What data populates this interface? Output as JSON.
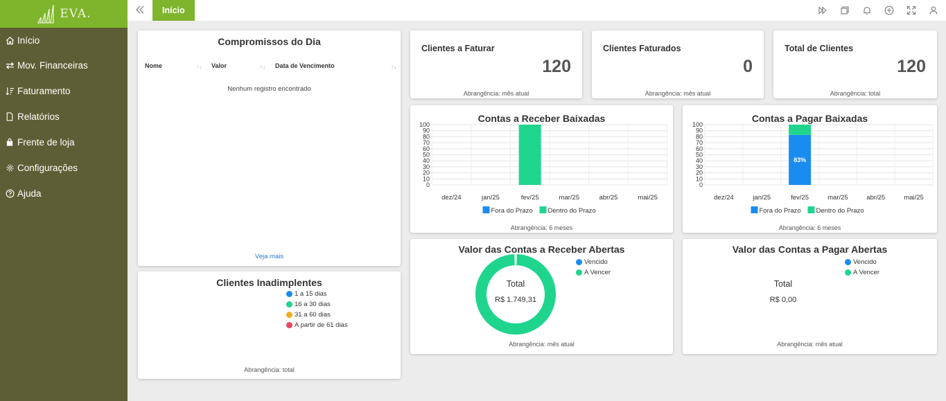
{
  "app": {
    "logo_text": "EVA."
  },
  "sidebar": {
    "items": [
      {
        "label": "Início",
        "icon": "home-icon"
      },
      {
        "label": "Mov. Financeiras",
        "icon": "exchange-icon"
      },
      {
        "label": "Faturamento",
        "icon": "sort-list-icon"
      },
      {
        "label": "Relatórios",
        "icon": "document-icon"
      },
      {
        "label": "Frente de loja",
        "icon": "bag-icon"
      },
      {
        "label": "Configurações",
        "icon": "gear-icon"
      },
      {
        "label": "Ajuda",
        "icon": "help-icon"
      }
    ]
  },
  "topbar": {
    "tab_label": "Início",
    "icons": [
      "forward-icon",
      "windows-icon",
      "bell-icon",
      "add-circle-icon",
      "fullscreen-icon",
      "user-icon"
    ]
  },
  "compromissos": {
    "title": "Compromissos do Dia",
    "columns": [
      "Nome",
      "Valor",
      "Data de Vencimento"
    ],
    "empty_message": "Nenhum registro encontrado",
    "see_more": "Veja mais"
  },
  "inadimplentes": {
    "title": "Clientes Inadimplentes",
    "legend": [
      {
        "label": "1 a 15 dias",
        "color": "#1a8cf0"
      },
      {
        "label": "16 a 30 dias",
        "color": "#1fd58e"
      },
      {
        "label": "31 a 60 dias",
        "color": "#f2ac1c"
      },
      {
        "label": "A partir de 61 dias",
        "color": "#ee4563"
      }
    ],
    "footer": "Abrangência: total"
  },
  "kpis": [
    {
      "label": "Clientes a Faturar",
      "value": "120",
      "footer": "Abrangência: mês atual"
    },
    {
      "label": "Clientes Faturados",
      "value": "0",
      "footer": "Abrangência: mês atual"
    },
    {
      "label": "Total de Clientes",
      "value": "120",
      "footer": "Abrangência: total"
    }
  ],
  "receber_baixadas": {
    "footer": "Abrangência: 6 meses"
  },
  "pagar_baixadas": {
    "footer": "Abrangência: 6 meses"
  },
  "receber_abertas": {
    "center_label": "Total",
    "center_value": "R$ 1.749,31",
    "legend": [
      {
        "label": "Vencido",
        "color": "#1a8cf0"
      },
      {
        "label": "A Vencer",
        "color": "#1fd58e"
      }
    ],
    "footer": "Abrangência: mês atual"
  },
  "pagar_abertas": {
    "center_label": "Total",
    "center_value": "R$ 0,00",
    "legend": [
      {
        "label": "Vencido",
        "color": "#1a8cf0"
      },
      {
        "label": "A Vencer",
        "color": "#1fd58e"
      }
    ],
    "footer": "Abrangência: mês atual"
  },
  "chart_data": [
    {
      "type": "bar",
      "stacked": true,
      "title": "Contas a Receber Baixadas",
      "categories": [
        "dez/24",
        "jan/25",
        "fev/25",
        "mar/25",
        "abr/25",
        "mai/25"
      ],
      "series": [
        {
          "name": "Fora do Prazo",
          "color": "#1a8cf0",
          "values": [
            0,
            0,
            0,
            0,
            0,
            0
          ]
        },
        {
          "name": "Dentro do Prazo",
          "color": "#1fd58e",
          "values": [
            0,
            0,
            100,
            0,
            0,
            0
          ]
        }
      ],
      "yticks": [
        0,
        10,
        20,
        30,
        40,
        50,
        60,
        70,
        80,
        90,
        100
      ],
      "ylim": [
        0,
        100
      ],
      "grid": true,
      "legend_position": "bottom"
    },
    {
      "type": "bar",
      "stacked": true,
      "title": "Contas a Pagar Baixadas",
      "categories": [
        "dez/24",
        "jan/25",
        "fev/25",
        "mar/25",
        "abr/25",
        "mai/25"
      ],
      "series": [
        {
          "name": "Fora do Prazo",
          "color": "#1a8cf0",
          "values": [
            0,
            0,
            83,
            0,
            0,
            0
          ]
        },
        {
          "name": "Dentro do Prazo",
          "color": "#1fd58e",
          "values": [
            0,
            0,
            17,
            0,
            0,
            0
          ]
        }
      ],
      "data_labels": [
        {
          "category": "fev/25",
          "series": "Fora do Prazo",
          "text": "83%"
        }
      ],
      "yticks": [
        0,
        10,
        20,
        30,
        40,
        50,
        60,
        70,
        80,
        90,
        100
      ],
      "ylim": [
        0,
        100
      ],
      "grid": true,
      "legend_position": "bottom"
    },
    {
      "type": "pie",
      "donut": true,
      "title": "Valor das Contas a Receber Abertas",
      "slices": [
        {
          "name": "Vencido",
          "color": "#1a8cf0",
          "value": 0
        },
        {
          "name": "A Vencer",
          "color": "#1fd58e",
          "value": 1749.31
        }
      ],
      "legend_position": "top-right"
    },
    {
      "type": "pie",
      "donut": true,
      "title": "Valor das Contas a Pagar Abertas",
      "slices": [
        {
          "name": "Vencido",
          "color": "#1a8cf0",
          "value": 0
        },
        {
          "name": "A Vencer",
          "color": "#1fd58e",
          "value": 0
        }
      ],
      "legend_position": "top-right"
    }
  ]
}
